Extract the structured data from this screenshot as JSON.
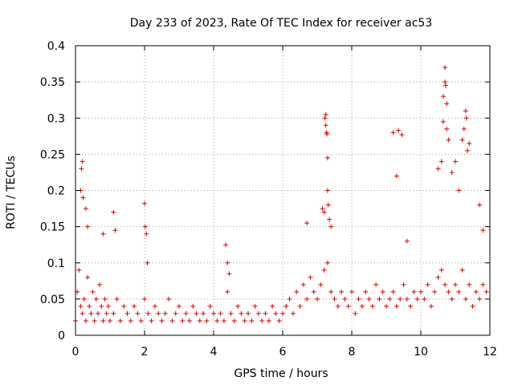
{
  "chart_data": {
    "type": "scatter",
    "title": "Day 233 of 2023, Rate Of TEC Index for receiver ac53",
    "xlabel": "GPS time / hours",
    "ylabel": "ROTI / TECUs",
    "xlim": [
      0,
      12
    ],
    "ylim": [
      0,
      0.4
    ],
    "x_ticks": [
      0,
      2,
      4,
      6,
      8,
      10,
      12
    ],
    "y_ticks": [
      0,
      0.05,
      0.1,
      0.15,
      0.2,
      0.25,
      0.3,
      0.35,
      0.4
    ],
    "x_tick_labels": [
      "0",
      "2",
      "4",
      "6",
      "8",
      "10",
      "12"
    ],
    "y_tick_labels": [
      "0",
      "0.05",
      "0.1",
      "0.15",
      "0.2",
      "0.25",
      "0.3",
      "0.35",
      "0.4"
    ],
    "grid": true,
    "marker": "plus",
    "color": "#e00000",
    "series": [
      {
        "x": [
          0.0,
          0.05,
          0.1,
          0.15,
          0.2,
          0.25,
          0.3,
          0.35,
          0.4,
          0.45,
          0.5,
          0.55,
          0.6,
          0.65,
          0.7,
          0.75,
          0.8,
          0.85,
          0.9,
          0.95,
          1.0,
          1.1,
          1.2,
          1.3,
          1.4,
          1.5,
          1.6,
          1.7,
          1.8,
          1.9,
          2.0,
          2.1,
          2.2,
          2.3,
          2.4,
          2.5,
          2.6,
          2.7,
          2.8,
          2.9,
          3.0,
          3.1,
          3.2,
          3.3,
          3.4,
          3.5,
          3.6,
          3.7,
          3.8,
          3.9,
          4.0,
          4.1,
          4.2,
          4.3,
          4.4,
          4.5,
          4.6,
          4.7,
          4.8,
          4.9,
          5.0,
          5.1,
          5.2,
          5.3,
          5.4,
          5.5,
          5.6,
          5.7,
          5.8,
          5.9,
          6.0,
          6.1,
          6.2,
          6.3,
          6.4,
          6.5,
          6.6,
          6.7,
          6.8,
          6.9,
          7.0,
          7.1,
          7.2,
          7.3,
          7.4,
          7.5,
          7.6,
          7.7,
          7.8,
          7.9,
          8.0,
          8.1,
          8.2,
          8.3,
          8.4,
          8.5,
          8.6,
          8.7,
          8.8,
          8.9,
          9.0,
          9.1,
          9.2,
          9.3,
          9.4,
          9.5,
          9.6,
          9.7,
          9.8,
          9.9,
          10.0,
          10.1,
          10.2,
          10.3,
          10.4,
          10.5,
          10.6,
          10.7,
          10.8,
          10.9,
          11.0,
          11.1,
          11.2,
          11.3,
          11.4,
          11.5,
          11.6,
          11.7,
          11.8,
          11.9
        ],
        "y": [
          0.02,
          0.06,
          0.09,
          0.04,
          0.03,
          0.05,
          0.02,
          0.08,
          0.04,
          0.03,
          0.06,
          0.02,
          0.05,
          0.03,
          0.07,
          0.04,
          0.02,
          0.05,
          0.03,
          0.04,
          0.02,
          0.03,
          0.05,
          0.02,
          0.04,
          0.03,
          0.02,
          0.04,
          0.03,
          0.02,
          0.05,
          0.03,
          0.02,
          0.04,
          0.03,
          0.02,
          0.03,
          0.05,
          0.02,
          0.03,
          0.04,
          0.02,
          0.03,
          0.02,
          0.04,
          0.03,
          0.02,
          0.03,
          0.02,
          0.04,
          0.03,
          0.02,
          0.03,
          0.02,
          0.06,
          0.03,
          0.02,
          0.04,
          0.03,
          0.02,
          0.03,
          0.02,
          0.04,
          0.03,
          0.02,
          0.03,
          0.02,
          0.04,
          0.03,
          0.02,
          0.03,
          0.04,
          0.05,
          0.03,
          0.06,
          0.04,
          0.07,
          0.05,
          0.08,
          0.06,
          0.05,
          0.07,
          0.09,
          0.1,
          0.06,
          0.05,
          0.04,
          0.06,
          0.05,
          0.04,
          0.06,
          0.03,
          0.05,
          0.04,
          0.06,
          0.05,
          0.04,
          0.07,
          0.05,
          0.06,
          0.04,
          0.05,
          0.06,
          0.04,
          0.05,
          0.07,
          0.05,
          0.04,
          0.06,
          0.05,
          0.06,
          0.05,
          0.07,
          0.04,
          0.06,
          0.08,
          0.09,
          0.07,
          0.06,
          0.05,
          0.07,
          0.06,
          0.09,
          0.05,
          0.07,
          0.04,
          0.06,
          0.05,
          0.07,
          0.06
        ]
      },
      {
        "x": [
          0.15,
          0.17,
          0.2,
          0.22,
          0.3,
          0.35,
          0.8,
          1.1,
          1.15,
          2.0,
          2.02,
          2.05,
          2.08,
          4.35,
          4.4,
          4.45,
          6.7,
          7.15,
          7.2,
          7.22,
          7.25,
          7.25,
          7.27,
          7.28,
          7.3,
          7.3,
          7.32,
          7.35,
          7.4,
          9.2,
          9.3,
          9.35,
          9.45,
          9.6,
          10.5,
          10.6,
          10.65,
          10.65,
          10.7,
          10.7,
          10.72,
          10.75,
          10.75,
          10.8,
          10.9,
          11.0,
          11.1,
          11.2,
          11.25,
          11.3,
          11.32,
          11.35,
          11.4,
          11.7,
          11.8
        ],
        "y": [
          0.2,
          0.23,
          0.24,
          0.19,
          0.175,
          0.15,
          0.14,
          0.17,
          0.145,
          0.182,
          0.15,
          0.14,
          0.1,
          0.125,
          0.1,
          0.085,
          0.155,
          0.175,
          0.17,
          0.3,
          0.305,
          0.29,
          0.28,
          0.278,
          0.245,
          0.2,
          0.18,
          0.16,
          0.15,
          0.28,
          0.22,
          0.283,
          0.277,
          0.13,
          0.23,
          0.24,
          0.33,
          0.295,
          0.37,
          0.35,
          0.345,
          0.32,
          0.285,
          0.27,
          0.225,
          0.24,
          0.2,
          0.27,
          0.285,
          0.31,
          0.3,
          0.255,
          0.265,
          0.18,
          0.145
        ]
      }
    ]
  }
}
